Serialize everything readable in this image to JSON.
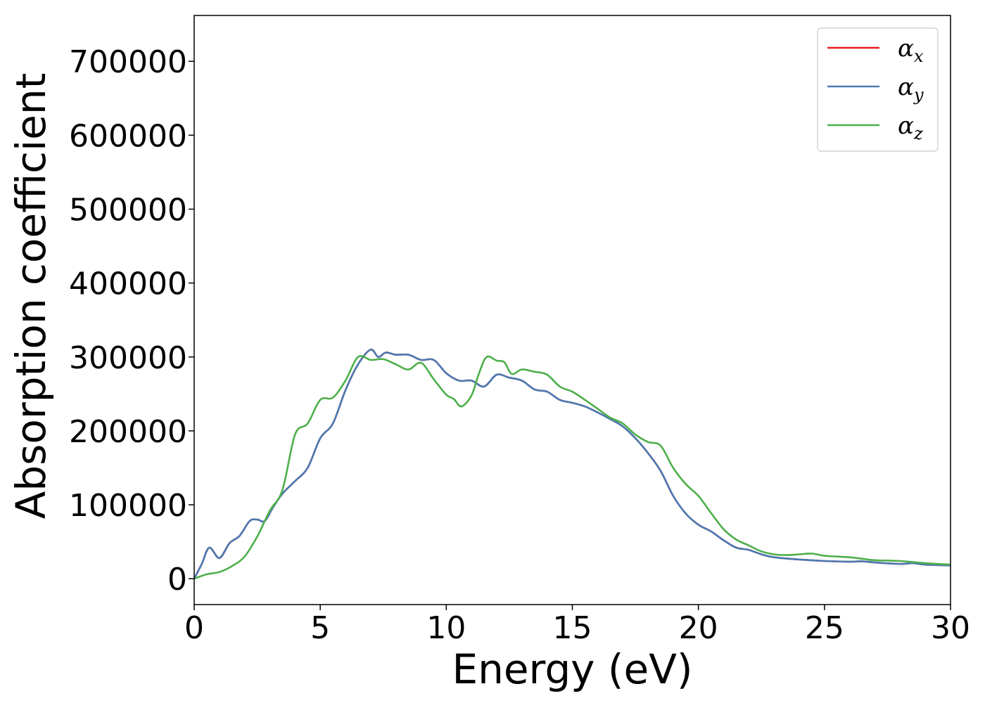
{
  "chart_data": {
    "type": "line",
    "title": "",
    "xlabel": "Energy (eV)",
    "ylabel": "Absorption coefficient",
    "xlim": [
      0,
      30
    ],
    "ylim": [
      -35000,
      762000
    ],
    "xticks": [
      0,
      5,
      10,
      15,
      20,
      25,
      30
    ],
    "xtick_labels": [
      "0",
      "5",
      "10",
      "15",
      "20",
      "25",
      "30"
    ],
    "yticks": [
      0,
      100000,
      200000,
      300000,
      400000,
      500000,
      600000,
      700000
    ],
    "ytick_labels": [
      "0",
      "100000",
      "200000",
      "300000",
      "400000",
      "500000",
      "600000",
      "700000"
    ],
    "grid": false,
    "legend_position": "top-right",
    "series": [
      {
        "name": "α_x",
        "legend_symbol": "α",
        "legend_subscript": "x",
        "color": "#e41a1c",
        "x": [
          0,
          0.3,
          0.6,
          1.0,
          1.4,
          1.8,
          2.2,
          2.5,
          2.8,
          3.1,
          3.5,
          4.0,
          4.5,
          5.0,
          5.5,
          6.0,
          6.5,
          7.0,
          7.3,
          7.6,
          8.0,
          8.5,
          9.0,
          9.5,
          10.0,
          10.5,
          11.0,
          11.5,
          12.0,
          12.5,
          13.0,
          13.5,
          14.0,
          14.5,
          15.0,
          15.5,
          16.0,
          16.5,
          17.0,
          17.5,
          18.0,
          18.5,
          19.0,
          19.5,
          20.0,
          20.5,
          21.0,
          21.5,
          22.0,
          22.5,
          23.0,
          24.0,
          25.0,
          26.0,
          26.5,
          27.0,
          28.0,
          28.5,
          29.0,
          30.0
        ],
        "y": [
          0,
          20000,
          42000,
          28000,
          48000,
          58000,
          78000,
          80000,
          78000,
          95000,
          115000,
          132000,
          150000,
          190000,
          210000,
          255000,
          290000,
          310000,
          300000,
          306000,
          303000,
          303000,
          296000,
          296000,
          278000,
          268000,
          268000,
          260000,
          276000,
          272000,
          268000,
          256000,
          253000,
          242000,
          238000,
          233000,
          225000,
          216000,
          206000,
          190000,
          170000,
          146000,
          112000,
          88000,
          73000,
          64000,
          52000,
          42000,
          39000,
          33000,
          29000,
          26000,
          24000,
          23000,
          23500,
          22000,
          20000,
          21000,
          19000,
          18000
        ]
      },
      {
        "name": "α_y",
        "legend_symbol": "α",
        "legend_subscript": "y",
        "color": "#4a7ab3",
        "x": [
          0,
          0.3,
          0.6,
          1.0,
          1.4,
          1.8,
          2.2,
          2.5,
          2.8,
          3.1,
          3.5,
          4.0,
          4.5,
          5.0,
          5.5,
          6.0,
          6.5,
          7.0,
          7.3,
          7.6,
          8.0,
          8.5,
          9.0,
          9.5,
          10.0,
          10.5,
          11.0,
          11.5,
          12.0,
          12.5,
          13.0,
          13.5,
          14.0,
          14.5,
          15.0,
          15.5,
          16.0,
          16.5,
          17.0,
          17.5,
          18.0,
          18.5,
          19.0,
          19.5,
          20.0,
          20.5,
          21.0,
          21.5,
          22.0,
          22.5,
          23.0,
          24.0,
          25.0,
          26.0,
          26.5,
          27.0,
          28.0,
          28.5,
          29.0,
          30.0
        ],
        "y": [
          0,
          20000,
          42000,
          28000,
          48000,
          58000,
          78000,
          80000,
          78000,
          95000,
          115000,
          132000,
          150000,
          190000,
          210000,
          255000,
          290000,
          310000,
          300000,
          306000,
          303000,
          303000,
          296000,
          296000,
          278000,
          268000,
          268000,
          260000,
          276000,
          272000,
          268000,
          256000,
          253000,
          242000,
          238000,
          233000,
          225000,
          216000,
          206000,
          190000,
          170000,
          146000,
          112000,
          88000,
          73000,
          64000,
          52000,
          42000,
          39000,
          33000,
          29000,
          26000,
          24000,
          23000,
          23500,
          22000,
          20000,
          21000,
          19000,
          18000
        ]
      },
      {
        "name": "α_z",
        "legend_symbol": "α",
        "legend_subscript": "z",
        "color": "#4daf4a",
        "x": [
          0,
          0.5,
          1.0,
          1.5,
          2.0,
          2.5,
          3.0,
          3.5,
          4.0,
          4.5,
          5.0,
          5.5,
          6.0,
          6.5,
          7.0,
          7.5,
          8.0,
          8.5,
          9.0,
          9.5,
          10.0,
          10.3,
          10.6,
          11.0,
          11.3,
          11.6,
          12.0,
          12.3,
          12.6,
          13.0,
          13.5,
          14.0,
          14.5,
          15.0,
          15.5,
          16.0,
          16.5,
          17.0,
          17.5,
          18.0,
          18.5,
          19.0,
          19.5,
          20.0,
          20.5,
          21.0,
          21.5,
          22.0,
          22.5,
          23.0,
          23.5,
          24.0,
          24.5,
          25.0,
          25.5,
          26.0,
          26.5,
          27.0,
          28.0,
          29.0,
          30.0
        ],
        "y": [
          0,
          6000,
          9000,
          17000,
          30000,
          57000,
          92000,
          120000,
          195000,
          210000,
          242000,
          245000,
          268000,
          300000,
          296000,
          297000,
          290000,
          283000,
          292000,
          270000,
          249000,
          243000,
          233000,
          248000,
          278000,
          300000,
          295000,
          293000,
          277000,
          283000,
          280000,
          276000,
          260000,
          253000,
          242000,
          230000,
          218000,
          210000,
          195000,
          185000,
          180000,
          150000,
          128000,
          112000,
          89000,
          67000,
          53000,
          45000,
          37000,
          33000,
          32000,
          33000,
          34000,
          31000,
          30000,
          29000,
          27000,
          25000,
          24000,
          21000,
          19000
        ]
      }
    ]
  }
}
